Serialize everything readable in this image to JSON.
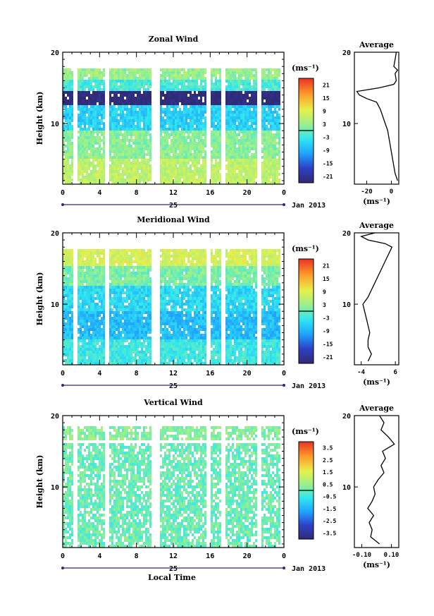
{
  "figure": {
    "date_label": "Jan 2013",
    "day_label": "25",
    "xlabel_bottom": "Local Time"
  },
  "panels": [
    {
      "title": "Zonal Wind",
      "profile_title": "Average",
      "ylabel": "Height (km)",
      "unit": "(ms⁻¹)",
      "profile_unit": "(ms⁻¹)",
      "colorbar_ticks": [
        "21",
        "15",
        "9",
        "3",
        "-3",
        "-9",
        "-15",
        "-21"
      ],
      "profile_xticks": [
        "-20",
        "0"
      ]
    },
    {
      "title": "Meridional Wind",
      "profile_title": "Average",
      "ylabel": "Height (km)",
      "unit": "(ms⁻¹)",
      "profile_unit": "(ms⁻¹)",
      "colorbar_ticks": [
        "21",
        "15",
        "9",
        "3",
        "-3",
        "-9",
        "-15",
        "-21"
      ],
      "profile_xticks": [
        "-4",
        "6"
      ]
    },
    {
      "title": "Vertical Wind",
      "profile_title": "Average",
      "ylabel": "Height (km)",
      "unit": "(ms⁻¹)",
      "profile_unit": "(ms⁻¹)",
      "colorbar_ticks": [
        "3.5",
        "2.5",
        "1.5",
        "0.5",
        "-0.5",
        "-1.5",
        "-2.5",
        "-3.5"
      ],
      "profile_xticks": [
        "-0.10",
        "0.10"
      ]
    }
  ],
  "chart_data": [
    {
      "type": "heatmap",
      "title": "Zonal Wind",
      "xlabel": "",
      "ylabel": "Height (km)",
      "x_ticks": [
        "0",
        "4",
        "8",
        "12",
        "16",
        "20",
        "0"
      ],
      "y_ticks": [
        "10",
        "20"
      ],
      "xlim": [
        0,
        24
      ],
      "ylim": [
        1.5,
        20
      ],
      "colorbar": {
        "label": "(ms⁻¹)",
        "range": [
          -24,
          24
        ],
        "ticks": [
          21,
          15,
          9,
          3,
          -3,
          -9,
          -15,
          -21
        ]
      },
      "data_gaps_hours": [
        [
          1.0,
          1.5
        ],
        [
          4.5,
          5.0
        ],
        [
          9.5,
          10.5
        ],
        [
          15.5,
          16.0
        ],
        [
          17.0,
          17.5
        ],
        [
          21.0,
          21.5
        ],
        [
          23.5,
          24.0
        ]
      ],
      "layers": [
        {
          "z": [
            1.5,
            5.0
          ],
          "value": 6
        },
        {
          "z": [
            5.0,
            9.0
          ],
          "value": 2
        },
        {
          "z": [
            9.0,
            12.5
          ],
          "value": -6
        },
        {
          "z": [
            12.5,
            14.5
          ],
          "value": -24
        },
        {
          "z": [
            14.5,
            16.0
          ],
          "value": -2
        },
        {
          "z": [
            16.0,
            17.5
          ],
          "value": 3
        }
      ]
    },
    {
      "type": "line",
      "title": "Average",
      "xlabel": "(ms⁻¹)",
      "ylabel": "",
      "x_ticks": [
        "-20",
        "0"
      ],
      "y_ticks": [
        "10",
        "20"
      ],
      "xlim": [
        -30,
        6
      ],
      "ylim": [
        1.5,
        20
      ],
      "series": [
        {
          "points": [
            [
              5,
              2
            ],
            [
              3,
              3
            ],
            [
              2,
              4
            ],
            [
              1,
              5
            ],
            [
              0,
              6
            ],
            [
              -1,
              7
            ],
            [
              -2,
              8
            ],
            [
              -3,
              9
            ],
            [
              -5,
              10
            ],
            [
              -7,
              11
            ],
            [
              -9,
              12
            ],
            [
              -12,
              13
            ],
            [
              -20,
              13.5
            ],
            [
              -26,
              14
            ],
            [
              -28,
              14.5
            ],
            [
              -10,
              15
            ],
            [
              2,
              15.5
            ],
            [
              4,
              16
            ],
            [
              3,
              17
            ],
            [
              5,
              17.5
            ],
            [
              2,
              18
            ],
            [
              3,
              19
            ],
            [
              4,
              20
            ]
          ]
        }
      ]
    },
    {
      "type": "heatmap",
      "title": "Meridional Wind",
      "xlabel": "",
      "ylabel": "Height (km)",
      "x_ticks": [
        "0",
        "4",
        "8",
        "12",
        "16",
        "20",
        "0"
      ],
      "y_ticks": [
        "10",
        "20"
      ],
      "xlim": [
        0,
        24
      ],
      "ylim": [
        1.5,
        20
      ],
      "colorbar": {
        "label": "(ms⁻¹)",
        "range": [
          -24,
          24
        ],
        "ticks": [
          21,
          15,
          9,
          3,
          -3,
          -9,
          -15,
          -21
        ]
      },
      "data_gaps_hours": [
        [
          1.0,
          1.5
        ],
        [
          4.5,
          5.0
        ],
        [
          9.5,
          10.5
        ],
        [
          15.5,
          16.0
        ],
        [
          17.0,
          17.5
        ],
        [
          21.0,
          21.5
        ],
        [
          23.5,
          24.0
        ]
      ],
      "layers": [
        {
          "z": [
            1.5,
            5.0
          ],
          "value": -3
        },
        {
          "z": [
            5.0,
            9.0
          ],
          "value": -8
        },
        {
          "z": [
            9.0,
            12.5
          ],
          "value": -5
        },
        {
          "z": [
            12.5,
            15.0
          ],
          "value": 1
        },
        {
          "z": [
            15.0,
            17.5
          ],
          "value": 8
        }
      ]
    },
    {
      "type": "line",
      "title": "Average",
      "xlabel": "(ms⁻¹)",
      "ylabel": "",
      "x_ticks": [
        "-4",
        "6"
      ],
      "y_ticks": [
        "10",
        "20"
      ],
      "xlim": [
        -6,
        7
      ],
      "ylim": [
        1.5,
        20
      ],
      "series": [
        {
          "points": [
            [
              -2,
              2
            ],
            [
              -1,
              3
            ],
            [
              -2,
              4
            ],
            [
              -2,
              5
            ],
            [
              -1.5,
              6
            ],
            [
              -2,
              7
            ],
            [
              -2.5,
              8
            ],
            [
              -3,
              9
            ],
            [
              -3.5,
              10
            ],
            [
              -2,
              11
            ],
            [
              -1,
              12
            ],
            [
              0,
              13
            ],
            [
              1,
              14
            ],
            [
              2,
              15
            ],
            [
              3,
              16
            ],
            [
              4,
              17
            ],
            [
              5,
              18
            ],
            [
              3,
              18.5
            ],
            [
              -2,
              19
            ],
            [
              -4,
              19.5
            ],
            [
              0,
              20
            ]
          ]
        }
      ]
    },
    {
      "type": "heatmap",
      "title": "Vertical Wind",
      "xlabel": "Local Time",
      "ylabel": "Height (km)",
      "x_ticks": [
        "0",
        "4",
        "8",
        "12",
        "16",
        "20",
        "0"
      ],
      "y_ticks": [
        "10",
        "20"
      ],
      "xlim": [
        0,
        24
      ],
      "ylim": [
        1.5,
        20
      ],
      "colorbar": {
        "label": "(ms⁻¹)",
        "range": [
          -4,
          4
        ],
        "ticks": [
          3.5,
          2.5,
          1.5,
          0.5,
          -0.5,
          -1.5,
          -2.5,
          -3.5
        ]
      },
      "data_gaps_hours": [
        [
          1.0,
          1.5
        ],
        [
          4.5,
          5.0
        ],
        [
          9.5,
          10.5
        ],
        [
          15.5,
          16.0
        ],
        [
          17.0,
          17.5
        ],
        [
          21.0,
          21.5
        ],
        [
          23.5,
          24.0
        ]
      ],
      "layers": [
        {
          "z": [
            1.5,
            16.0
          ],
          "value": 0
        },
        {
          "z": [
            16.5,
            18.5
          ],
          "value": 0.3
        }
      ]
    },
    {
      "type": "line",
      "title": "Average",
      "xlabel": "(ms⁻¹)",
      "ylabel": "",
      "x_ticks": [
        "-0.10",
        "0.10"
      ],
      "y_ticks": [
        "10",
        "20"
      ],
      "xlim": [
        -0.15,
        0.15
      ],
      "ylim": [
        1.5,
        20
      ],
      "series": [
        {
          "points": [
            [
              0.02,
              2
            ],
            [
              -0.04,
              3
            ],
            [
              -0.03,
              4
            ],
            [
              -0.05,
              5
            ],
            [
              -0.02,
              6
            ],
            [
              -0.06,
              7
            ],
            [
              -0.03,
              8
            ],
            [
              -0.01,
              9
            ],
            [
              -0.02,
              10
            ],
            [
              0.01,
              11
            ],
            [
              0.05,
              12
            ],
            [
              0.03,
              13
            ],
            [
              0.06,
              14
            ],
            [
              0.04,
              15
            ],
            [
              0.12,
              16
            ],
            [
              0.08,
              17
            ],
            [
              0.03,
              18
            ],
            [
              0.05,
              19
            ],
            [
              0.02,
              20
            ]
          ]
        }
      ]
    }
  ]
}
